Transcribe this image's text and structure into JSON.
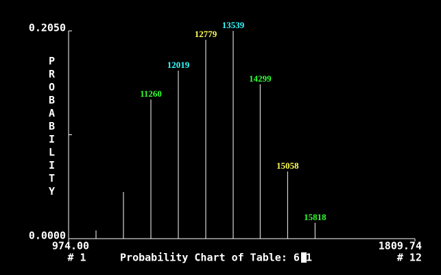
{
  "chart_data": {
    "type": "stem",
    "title": "Probability Chart of Table: 6-1",
    "ylabel": "PROBABILITY",
    "x": [
      1040.2,
      1106.4,
      1172.6,
      1238.8,
      1305.0,
      1371.2,
      1436.3,
      1502.5,
      1568.7
    ],
    "values": [
      0.0081,
      0.046,
      0.1373,
      0.1658,
      0.1962,
      0.205,
      0.1522,
      0.0663,
      0.0156
    ],
    "point_labels": [
      null,
      null,
      "11260",
      "12019",
      "12779",
      "13539",
      "14299",
      "15058",
      "15818"
    ],
    "point_label_colors": [
      null,
      null,
      "#33ff33",
      "#33ffff",
      "#ffff55",
      "#33ffff",
      "#33ff33",
      "#ffff55",
      "#33ff33"
    ],
    "color": "#ffffff",
    "xlim": [
      974.0,
      1809.74
    ],
    "xticks": [
      {
        "value": 974.0,
        "label": "974.00"
      },
      {
        "value": 1809.74,
        "label": "1809.74"
      }
    ],
    "x_index_labels": [
      "# 1",
      "# 12"
    ],
    "ylim": [
      0,
      0.205
    ],
    "yticks": [
      {
        "value": 0,
        "label": "0.0000"
      },
      {
        "value": 0.205,
        "label": "0.2050"
      }
    ],
    "y_minor_ticks": [
      0.1025
    ]
  }
}
